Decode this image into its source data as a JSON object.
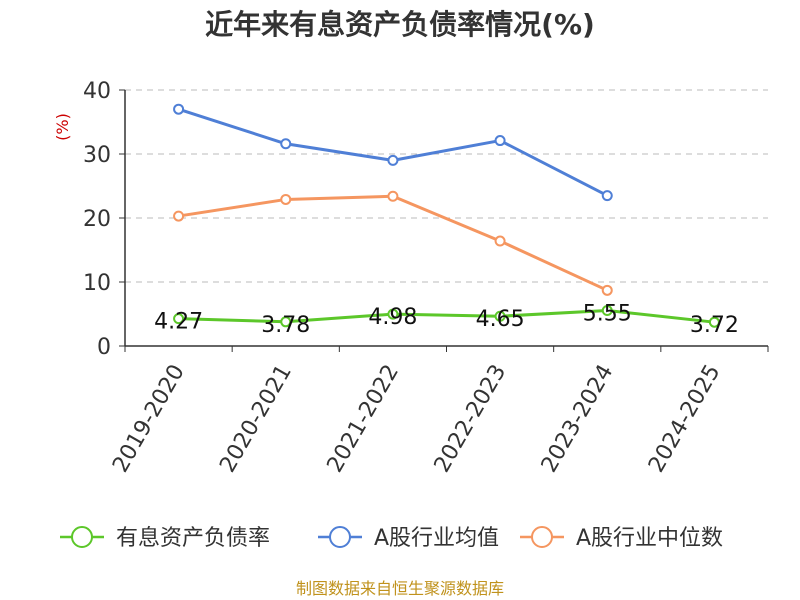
{
  "chart_data": {
    "type": "line",
    "title": "近年来有息资产负债率情况(%)",
    "ylabel": "(%)",
    "ylim": [
      0,
      40
    ],
    "yticks": [
      0,
      10,
      20,
      30,
      40
    ],
    "grid": true,
    "legend_position": "bottom",
    "categories": [
      "2019-2020",
      "2020-2021",
      "2021-2022",
      "2022-2023",
      "2023-2024",
      "2024-2025"
    ],
    "series": [
      {
        "name": "有息资产负债率",
        "color": "#5cc72a",
        "values": [
          4.27,
          3.78,
          4.98,
          4.65,
          5.55,
          3.72
        ],
        "show_labels": true
      },
      {
        "name": "A股行业均值",
        "color": "#4f7fd6",
        "values": [
          37.0,
          31.6,
          29.0,
          32.1,
          23.5,
          null
        ],
        "show_labels": false
      },
      {
        "name": "A股行业中位数",
        "color": "#f59660",
        "values": [
          20.3,
          22.9,
          23.4,
          16.4,
          8.7,
          null
        ],
        "show_labels": false
      }
    ],
    "source": "制图数据来自恒生聚源数据库"
  }
}
